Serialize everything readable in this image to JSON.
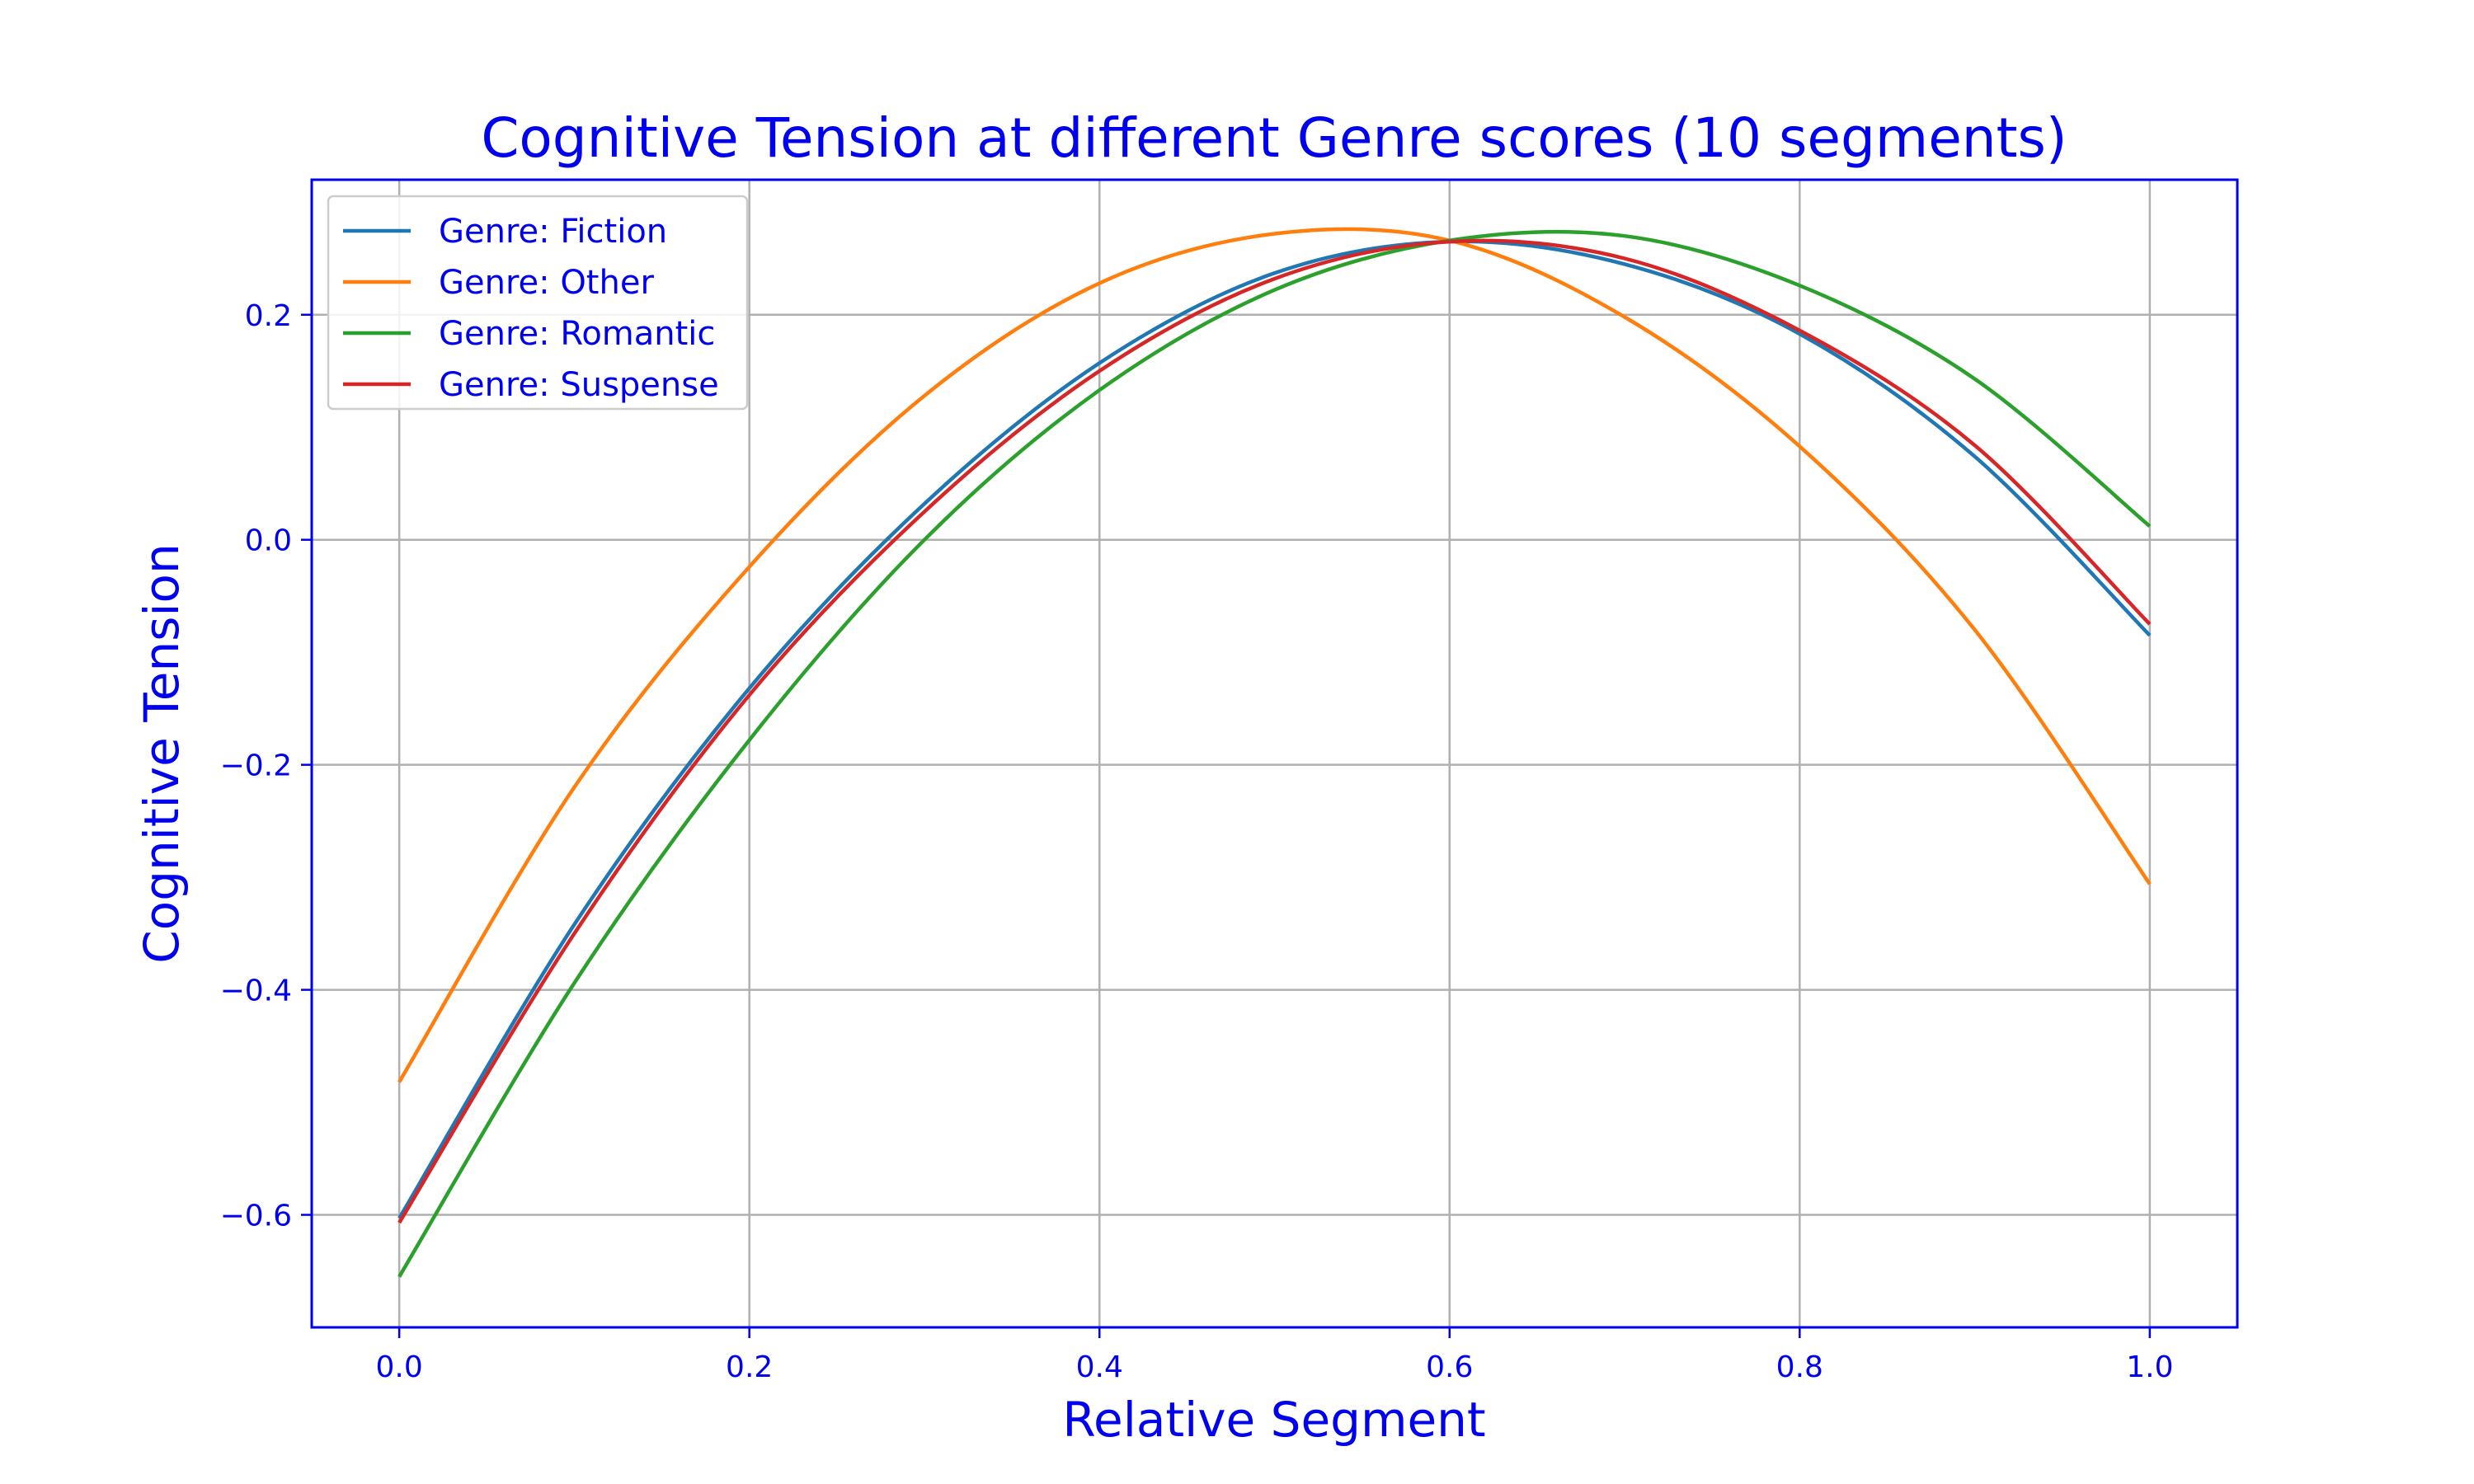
{
  "chart_data": {
    "type": "line",
    "title": "Cognitive Tension at different Genre scores (10 segments)",
    "xlabel": "Relative Segment",
    "ylabel": "Cognitive Tension",
    "xlim": [
      -0.05,
      1.05
    ],
    "ylim": [
      -0.7,
      0.32
    ],
    "x_ticks": [
      0.0,
      0.2,
      0.4,
      0.6,
      0.8,
      1.0
    ],
    "x_tick_labels": [
      "0.0",
      "0.2",
      "0.4",
      "0.6",
      "0.8",
      "1.0"
    ],
    "y_ticks": [
      -0.6,
      -0.4,
      -0.2,
      0.0,
      0.2
    ],
    "y_tick_labels": [
      "−0.6",
      "−0.4",
      "−0.2",
      "0.0",
      "0.2"
    ],
    "grid": true,
    "legend_position": "top-left",
    "text_color": "#0000ee",
    "frame_color": "#0000ee",
    "grid_color": "#b0b0b0",
    "series": [
      {
        "name": "Genre: Fiction",
        "color": "#1f77b4",
        "x": [
          0.0,
          0.1,
          0.2,
          0.3,
          0.4,
          0.5,
          0.6,
          0.7,
          0.8,
          0.9,
          1.0
        ],
        "values": [
          -0.603,
          -0.342,
          -0.132,
          0.032,
          0.157,
          0.237,
          0.265,
          0.245,
          0.183,
          0.074,
          -0.085
        ]
      },
      {
        "name": "Genre: Other",
        "color": "#ff7f0e",
        "x": [
          0.0,
          0.1,
          0.2,
          0.3,
          0.4,
          0.5,
          0.6,
          0.7,
          0.8,
          0.9,
          1.0
        ],
        "values": [
          -0.482,
          -0.22,
          -0.024,
          0.128,
          0.228,
          0.272,
          0.266,
          0.198,
          0.083,
          -0.08,
          -0.306
        ]
      },
      {
        "name": "Genre: Romantic",
        "color": "#2ca02c",
        "x": [
          0.0,
          0.1,
          0.2,
          0.3,
          0.4,
          0.5,
          0.6,
          0.7,
          0.8,
          0.9,
          1.0
        ],
        "values": [
          -0.655,
          -0.394,
          -0.178,
          0.0,
          0.133,
          0.222,
          0.266,
          0.27,
          0.226,
          0.143,
          0.012
        ]
      },
      {
        "name": "Genre: Suspense",
        "color": "#d62728",
        "x": [
          0.0,
          0.1,
          0.2,
          0.3,
          0.4,
          0.5,
          0.6,
          0.7,
          0.8,
          0.9,
          1.0
        ],
        "values": [
          -0.607,
          -0.35,
          -0.138,
          0.025,
          0.15,
          0.232,
          0.265,
          0.25,
          0.186,
          0.084,
          -0.075
        ]
      }
    ]
  }
}
